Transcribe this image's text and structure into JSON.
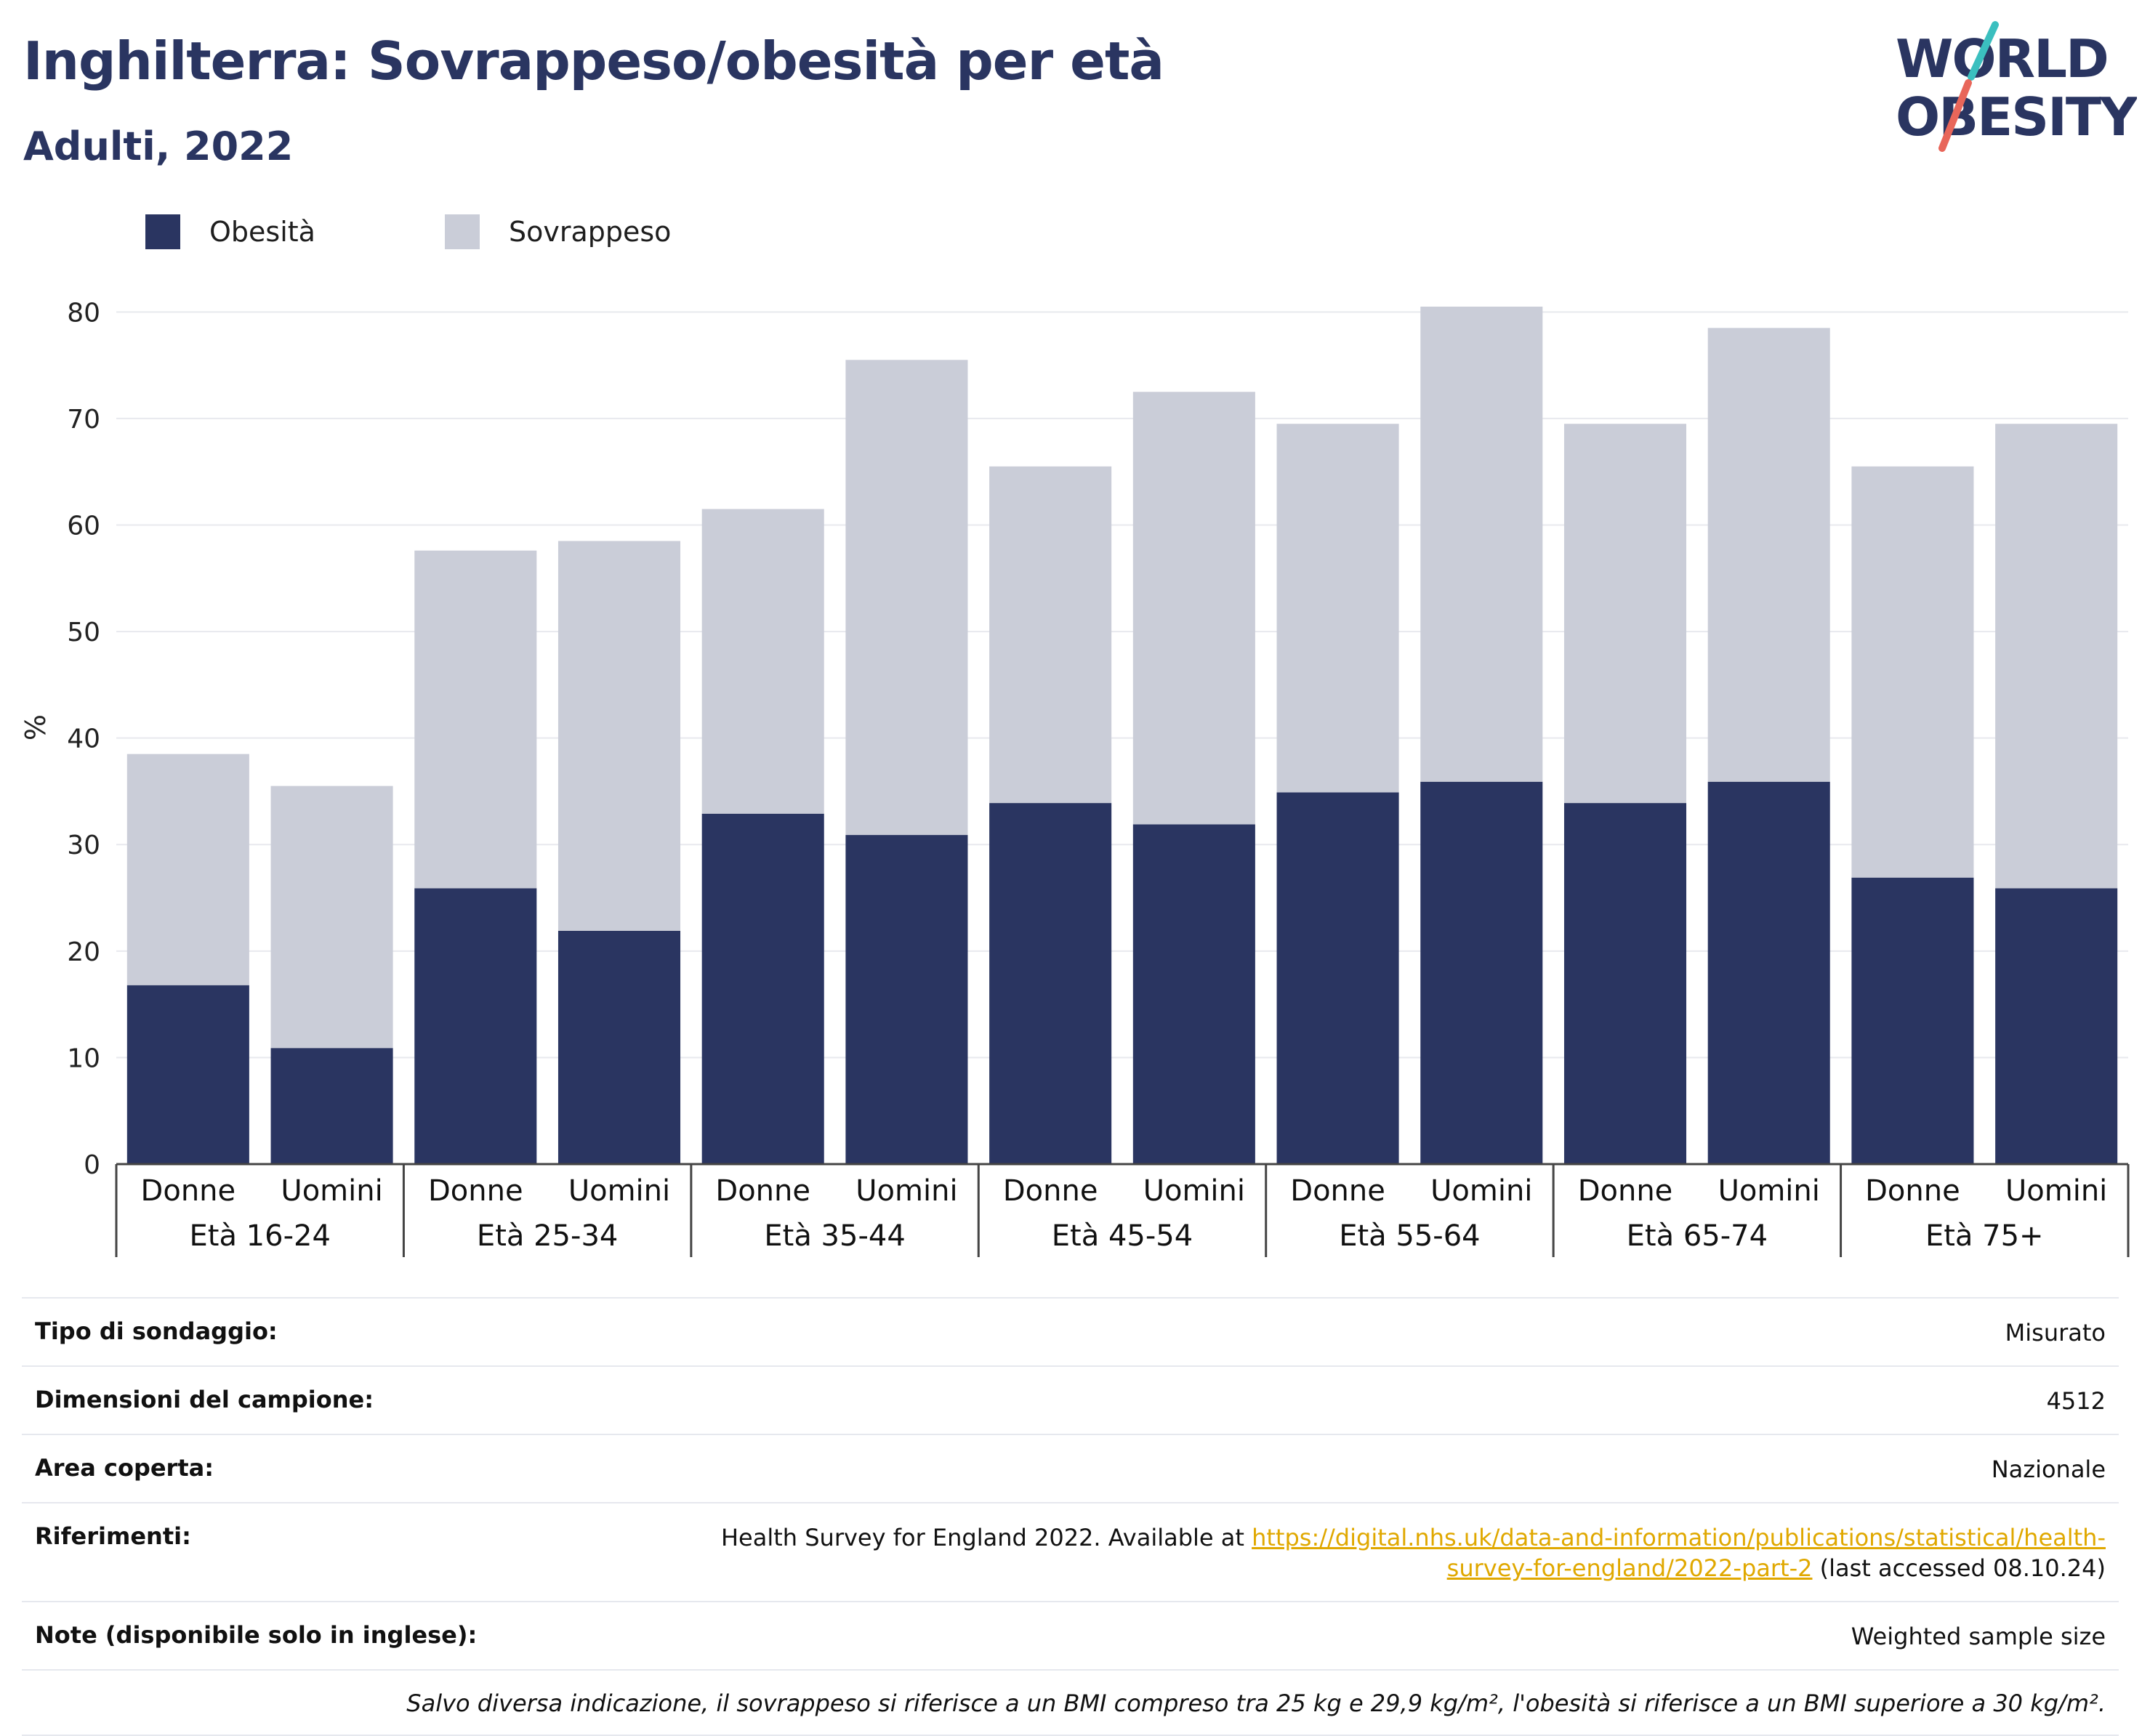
{
  "title": "Inghilterra: Sovrappeso/obesità per età",
  "subtitle": "Adulti, 2022",
  "logo": {
    "line1": "WORLD",
    "line2": "OBESITY",
    "accent_top": "#3bbfbf",
    "accent_bottom": "#e8665a",
    "text_color": "#2a3561"
  },
  "colors": {
    "obesity": "#2a3561",
    "overweight": "#cacdd8",
    "grid": "#e8e9ee",
    "axis": "#444444",
    "link": "#e0a800"
  },
  "legend": [
    {
      "label": "Obesità",
      "color": "#2a3561"
    },
    {
      "label": "Sovrappeso",
      "color": "#cacdd8"
    }
  ],
  "chart_data": {
    "type": "bar",
    "stacked": true,
    "ylabel": "%",
    "ylim": [
      0,
      82
    ],
    "yticks": [
      0,
      10,
      20,
      30,
      40,
      50,
      60,
      70,
      80
    ],
    "grid": true,
    "legend_position": "top-left",
    "groups": [
      "Età 16-24",
      "Età 25-34",
      "Età 35-44",
      "Età 45-54",
      "Età 55-64",
      "Età 65-74",
      "Età 75+"
    ],
    "subcategories": [
      "Donne",
      "Uomini"
    ],
    "series": [
      {
        "name": "Obesità",
        "values": [
          16.8,
          10.9,
          25.9,
          21.9,
          32.9,
          30.9,
          33.9,
          31.9,
          34.9,
          35.9,
          33.9,
          35.9,
          26.9,
          25.9
        ]
      },
      {
        "name": "Sovrappeso",
        "values": [
          21.7,
          24.6,
          31.7,
          36.6,
          28.6,
          44.6,
          31.6,
          40.6,
          34.6,
          44.6,
          35.6,
          42.6,
          38.6,
          43.6
        ]
      }
    ],
    "totals": [
      38.5,
      35.5,
      57.6,
      58.5,
      61.5,
      75.5,
      65.5,
      72.5,
      69.5,
      80.5,
      69.5,
      78.5,
      65.5,
      69.5
    ]
  },
  "info": {
    "survey_type_label": "Tipo di sondaggio:",
    "survey_type_value": "Misurato",
    "sample_size_label": "Dimensioni del campione:",
    "sample_size_value": "4512",
    "area_label": "Area coperta:",
    "area_value": "Nazionale",
    "references_label": "Riferimenti:",
    "references_text": "Health Survey for England 2022. Available at ",
    "references_link": "https://digital.nhs.uk/data-and-information/publications/statistical/health-survey-for-england/2022-part-2",
    "references_suffix": " (last accessed 08.10.24)",
    "notes_label": "Note (disponibile solo in inglese):",
    "notes_value": "Weighted sample size",
    "footnote": "Salvo diversa indicazione, il sovrappeso si riferisce a un BMI compreso tra 25 kg e 29,9 kg/m², l'obesità si riferisce a un BMI superiore a 30 kg/m²."
  }
}
